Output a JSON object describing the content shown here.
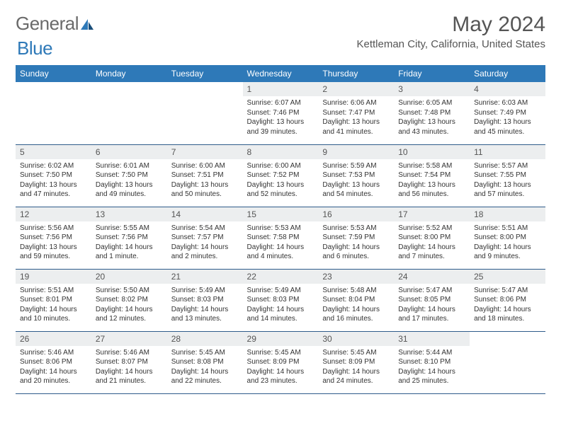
{
  "brand": {
    "part1": "General",
    "part2": "Blue"
  },
  "title": {
    "month": "May 2024",
    "location": "Kettleman City, California, United States"
  },
  "colors": {
    "header_bg": "#2e79b8",
    "header_fg": "#ffffff",
    "daynum_bg": "#eceeef",
    "border": "#2e5b8a"
  },
  "weekdays": [
    "Sunday",
    "Monday",
    "Tuesday",
    "Wednesday",
    "Thursday",
    "Friday",
    "Saturday"
  ],
  "weeks": [
    [
      {
        "n": "",
        "sr": "",
        "ss": "",
        "dl": ""
      },
      {
        "n": "",
        "sr": "",
        "ss": "",
        "dl": ""
      },
      {
        "n": "",
        "sr": "",
        "ss": "",
        "dl": ""
      },
      {
        "n": "1",
        "sr": "Sunrise: 6:07 AM",
        "ss": "Sunset: 7:46 PM",
        "dl": "Daylight: 13 hours and 39 minutes."
      },
      {
        "n": "2",
        "sr": "Sunrise: 6:06 AM",
        "ss": "Sunset: 7:47 PM",
        "dl": "Daylight: 13 hours and 41 minutes."
      },
      {
        "n": "3",
        "sr": "Sunrise: 6:05 AM",
        "ss": "Sunset: 7:48 PM",
        "dl": "Daylight: 13 hours and 43 minutes."
      },
      {
        "n": "4",
        "sr": "Sunrise: 6:03 AM",
        "ss": "Sunset: 7:49 PM",
        "dl": "Daylight: 13 hours and 45 minutes."
      }
    ],
    [
      {
        "n": "5",
        "sr": "Sunrise: 6:02 AM",
        "ss": "Sunset: 7:50 PM",
        "dl": "Daylight: 13 hours and 47 minutes."
      },
      {
        "n": "6",
        "sr": "Sunrise: 6:01 AM",
        "ss": "Sunset: 7:50 PM",
        "dl": "Daylight: 13 hours and 49 minutes."
      },
      {
        "n": "7",
        "sr": "Sunrise: 6:00 AM",
        "ss": "Sunset: 7:51 PM",
        "dl": "Daylight: 13 hours and 50 minutes."
      },
      {
        "n": "8",
        "sr": "Sunrise: 6:00 AM",
        "ss": "Sunset: 7:52 PM",
        "dl": "Daylight: 13 hours and 52 minutes."
      },
      {
        "n": "9",
        "sr": "Sunrise: 5:59 AM",
        "ss": "Sunset: 7:53 PM",
        "dl": "Daylight: 13 hours and 54 minutes."
      },
      {
        "n": "10",
        "sr": "Sunrise: 5:58 AM",
        "ss": "Sunset: 7:54 PM",
        "dl": "Daylight: 13 hours and 56 minutes."
      },
      {
        "n": "11",
        "sr": "Sunrise: 5:57 AM",
        "ss": "Sunset: 7:55 PM",
        "dl": "Daylight: 13 hours and 57 minutes."
      }
    ],
    [
      {
        "n": "12",
        "sr": "Sunrise: 5:56 AM",
        "ss": "Sunset: 7:56 PM",
        "dl": "Daylight: 13 hours and 59 minutes."
      },
      {
        "n": "13",
        "sr": "Sunrise: 5:55 AM",
        "ss": "Sunset: 7:56 PM",
        "dl": "Daylight: 14 hours and 1 minute."
      },
      {
        "n": "14",
        "sr": "Sunrise: 5:54 AM",
        "ss": "Sunset: 7:57 PM",
        "dl": "Daylight: 14 hours and 2 minutes."
      },
      {
        "n": "15",
        "sr": "Sunrise: 5:53 AM",
        "ss": "Sunset: 7:58 PM",
        "dl": "Daylight: 14 hours and 4 minutes."
      },
      {
        "n": "16",
        "sr": "Sunrise: 5:53 AM",
        "ss": "Sunset: 7:59 PM",
        "dl": "Daylight: 14 hours and 6 minutes."
      },
      {
        "n": "17",
        "sr": "Sunrise: 5:52 AM",
        "ss": "Sunset: 8:00 PM",
        "dl": "Daylight: 14 hours and 7 minutes."
      },
      {
        "n": "18",
        "sr": "Sunrise: 5:51 AM",
        "ss": "Sunset: 8:00 PM",
        "dl": "Daylight: 14 hours and 9 minutes."
      }
    ],
    [
      {
        "n": "19",
        "sr": "Sunrise: 5:51 AM",
        "ss": "Sunset: 8:01 PM",
        "dl": "Daylight: 14 hours and 10 minutes."
      },
      {
        "n": "20",
        "sr": "Sunrise: 5:50 AM",
        "ss": "Sunset: 8:02 PM",
        "dl": "Daylight: 14 hours and 12 minutes."
      },
      {
        "n": "21",
        "sr": "Sunrise: 5:49 AM",
        "ss": "Sunset: 8:03 PM",
        "dl": "Daylight: 14 hours and 13 minutes."
      },
      {
        "n": "22",
        "sr": "Sunrise: 5:49 AM",
        "ss": "Sunset: 8:03 PM",
        "dl": "Daylight: 14 hours and 14 minutes."
      },
      {
        "n": "23",
        "sr": "Sunrise: 5:48 AM",
        "ss": "Sunset: 8:04 PM",
        "dl": "Daylight: 14 hours and 16 minutes."
      },
      {
        "n": "24",
        "sr": "Sunrise: 5:47 AM",
        "ss": "Sunset: 8:05 PM",
        "dl": "Daylight: 14 hours and 17 minutes."
      },
      {
        "n": "25",
        "sr": "Sunrise: 5:47 AM",
        "ss": "Sunset: 8:06 PM",
        "dl": "Daylight: 14 hours and 18 minutes."
      }
    ],
    [
      {
        "n": "26",
        "sr": "Sunrise: 5:46 AM",
        "ss": "Sunset: 8:06 PM",
        "dl": "Daylight: 14 hours and 20 minutes."
      },
      {
        "n": "27",
        "sr": "Sunrise: 5:46 AM",
        "ss": "Sunset: 8:07 PM",
        "dl": "Daylight: 14 hours and 21 minutes."
      },
      {
        "n": "28",
        "sr": "Sunrise: 5:45 AM",
        "ss": "Sunset: 8:08 PM",
        "dl": "Daylight: 14 hours and 22 minutes."
      },
      {
        "n": "29",
        "sr": "Sunrise: 5:45 AM",
        "ss": "Sunset: 8:09 PM",
        "dl": "Daylight: 14 hours and 23 minutes."
      },
      {
        "n": "30",
        "sr": "Sunrise: 5:45 AM",
        "ss": "Sunset: 8:09 PM",
        "dl": "Daylight: 14 hours and 24 minutes."
      },
      {
        "n": "31",
        "sr": "Sunrise: 5:44 AM",
        "ss": "Sunset: 8:10 PM",
        "dl": "Daylight: 14 hours and 25 minutes."
      },
      {
        "n": "",
        "sr": "",
        "ss": "",
        "dl": ""
      }
    ]
  ]
}
